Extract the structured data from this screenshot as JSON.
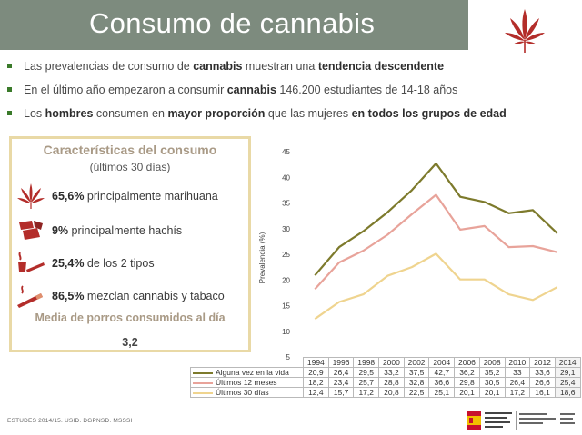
{
  "title": "Consumo de cannabis",
  "bullets": [
    {
      "parts": [
        {
          "t": "Las prevalencias de consumo de "
        },
        {
          "t": "cannabis",
          "b": true
        },
        {
          "t": " muestran una "
        },
        {
          "t": "tendencia descendente",
          "b": true
        }
      ]
    },
    {
      "parts": [
        {
          "t": "En el último año empezaron a consumir "
        },
        {
          "t": "cannabis",
          "b": true
        },
        {
          "t": " 146.200 estudiantes de 14-18 años"
        }
      ]
    },
    {
      "parts": [
        {
          "t": "Los "
        },
        {
          "t": "hombres",
          "b": true
        },
        {
          "t": " consumen en "
        },
        {
          "t": "mayor proporción",
          "b": true
        },
        {
          "t": " que las mujeres "
        },
        {
          "t": "en todos los grupos de edad",
          "b": true
        }
      ]
    }
  ],
  "characteristics": {
    "title": "Características del consumo",
    "subtitle": "(últimos 30 días)",
    "items": [
      {
        "icon": "marijuana-leaf-icon",
        "bold": "65,6%",
        "text": " principalmente marihuana"
      },
      {
        "icon": "hashish-icon",
        "bold": "9%",
        "text": " principalmente hachís"
      },
      {
        "icon": "pipe-joint-icon",
        "bold": "25,4%",
        "text": " de los 2 tipos"
      },
      {
        "icon": "cigarette-icon",
        "bold": "86,5%",
        "text": " mezclan cannabis y tabaco"
      }
    ],
    "media_label": "Media de porros consumidos al día",
    "media_value": "3,2"
  },
  "colors": {
    "title_bar": "#7d8b7e",
    "bullet": "#3a7a2a",
    "box_border": "#e9d9a6",
    "box_heading": "#a99a86",
    "leaf": "#b32d2a"
  },
  "chart_data": {
    "type": "line",
    "ylabel": "Prevalencia (%)",
    "ylim": [
      5,
      45
    ],
    "yticks": [
      5,
      10,
      15,
      20,
      25,
      30,
      35,
      40,
      45
    ],
    "grid": false,
    "x": [
      "1994",
      "1996",
      "1998",
      "2000",
      "2002",
      "2004",
      "2006",
      "2008",
      "2010",
      "2012",
      "2014"
    ],
    "series": [
      {
        "name": "Alguna vez en la vida",
        "color": "#7d7a2c",
        "values": [
          20.9,
          26.4,
          29.5,
          33.2,
          37.5,
          42.7,
          36.2,
          35.2,
          33,
          33.6,
          29.1
        ],
        "labels": [
          "20,9",
          "26,4",
          "29,5",
          "33,2",
          "37,5",
          "42,7",
          "36,2",
          "35,2",
          "33",
          "33,6",
          "29,1"
        ]
      },
      {
        "name": "Últimos 12 meses",
        "color": "#e8a39a",
        "values": [
          18.2,
          23.4,
          25.7,
          28.8,
          32.8,
          36.6,
          29.8,
          30.5,
          26.4,
          26.6,
          25.4
        ],
        "labels": [
          "18,2",
          "23,4",
          "25,7",
          "28,8",
          "32,8",
          "36,6",
          "29,8",
          "30,5",
          "26,4",
          "26,6",
          "25,4"
        ]
      },
      {
        "name": "Últimos 30 días",
        "color": "#efd48f",
        "values": [
          12.4,
          15.7,
          17.2,
          20.8,
          22.5,
          25.1,
          20.1,
          20.1,
          17.2,
          16.1,
          18.6
        ],
        "labels": [
          "12,4",
          "15,7",
          "17,2",
          "20,8",
          "22,5",
          "25,1",
          "20,1",
          "20,1",
          "17,2",
          "16,1",
          "18,6"
        ]
      }
    ]
  },
  "footer": "ESTUDES 2014/15. USID. DGPNSD. MSSSI"
}
